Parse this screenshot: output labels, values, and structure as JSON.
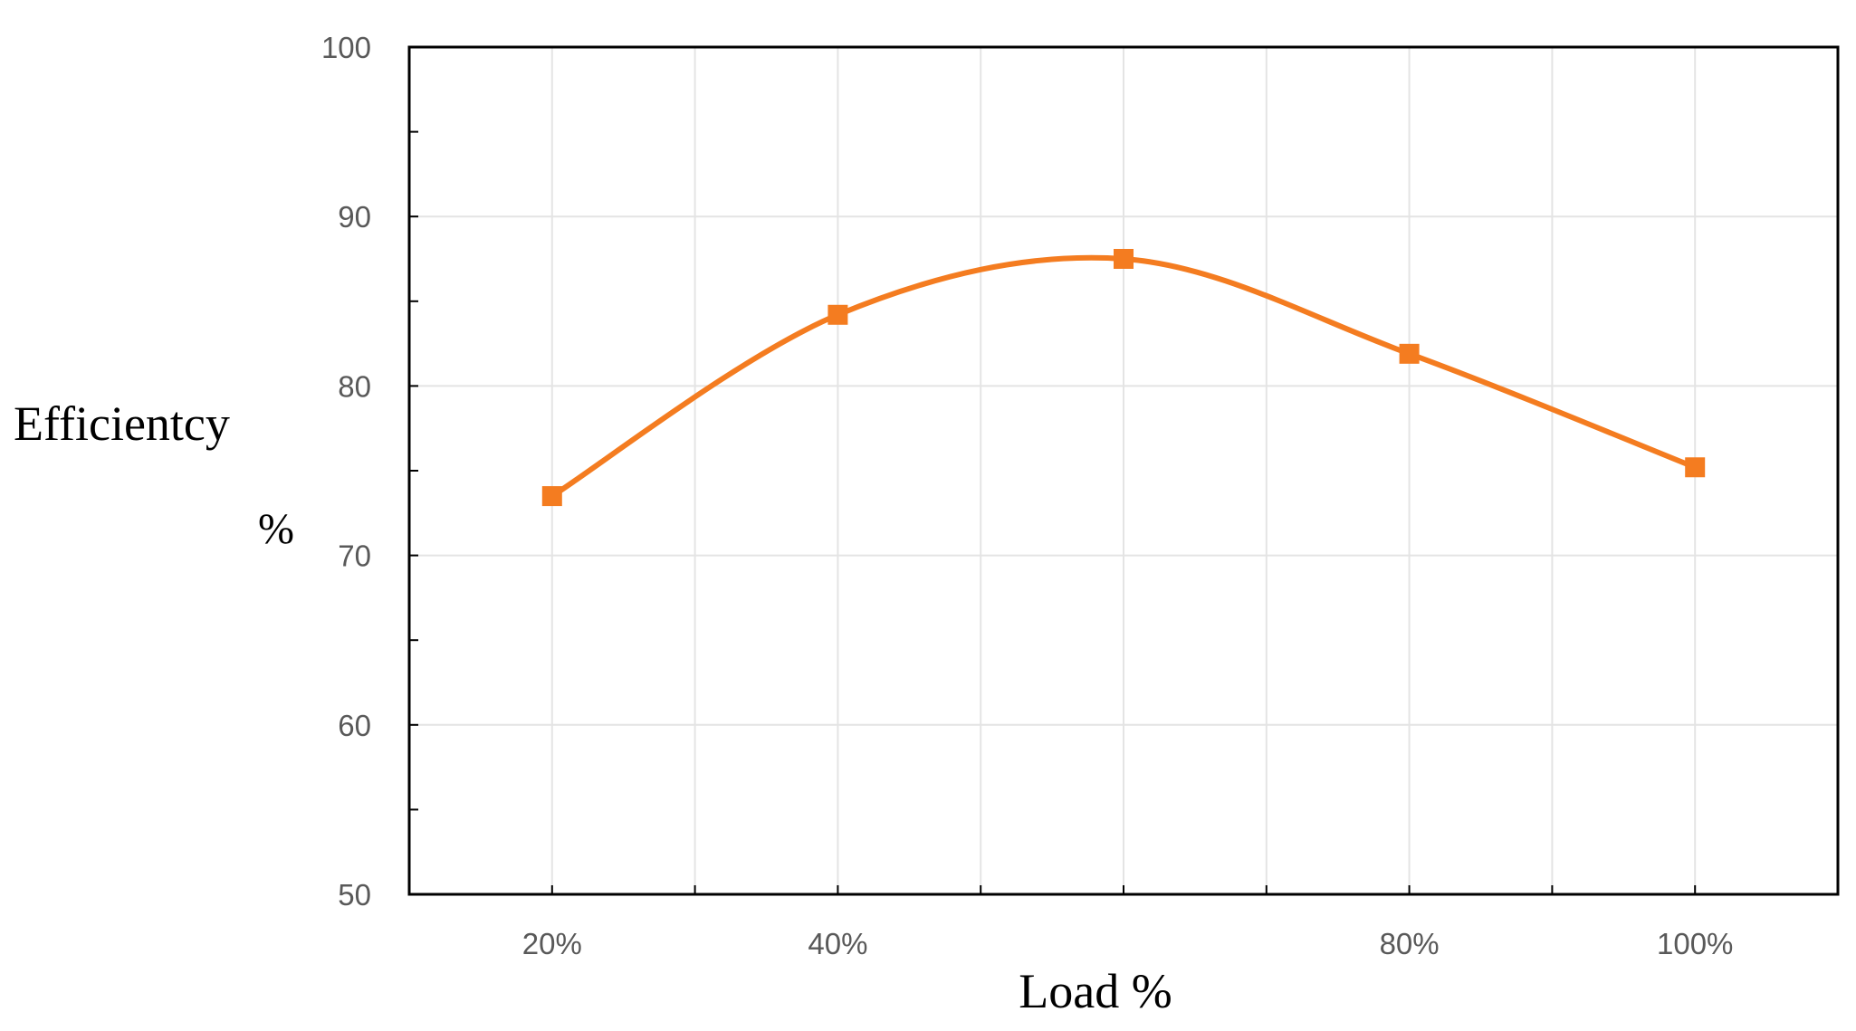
{
  "chart_data": {
    "type": "line",
    "xlabel": "Load %",
    "ylabel": "Efficientcy",
    "ylabel_unit": "%",
    "ylim": [
      50,
      100
    ],
    "yticks": [
      50,
      60,
      70,
      80,
      90,
      100
    ],
    "xlim": [
      10,
      110
    ],
    "x_tick_positions": [
      20,
      30,
      40,
      50,
      60,
      70,
      80,
      90,
      100
    ],
    "x_tick_labels": [
      {
        "x": 20,
        "label": "20%"
      },
      {
        "x": 40,
        "label": "40%"
      },
      {
        "x": 80,
        "label": "80%"
      },
      {
        "x": 100,
        "label": "100%"
      }
    ],
    "series": [
      {
        "color": "#f47c20",
        "marker": "square",
        "smooth": true,
        "points": [
          {
            "x": 20,
            "y": 73.5
          },
          {
            "x": 40,
            "y": 84.2
          },
          {
            "x": 60,
            "y": 87.5
          },
          {
            "x": 80,
            "y": 81.9
          },
          {
            "x": 100,
            "y": 75.2
          }
        ]
      }
    ],
    "grid": true,
    "legend": "none"
  }
}
